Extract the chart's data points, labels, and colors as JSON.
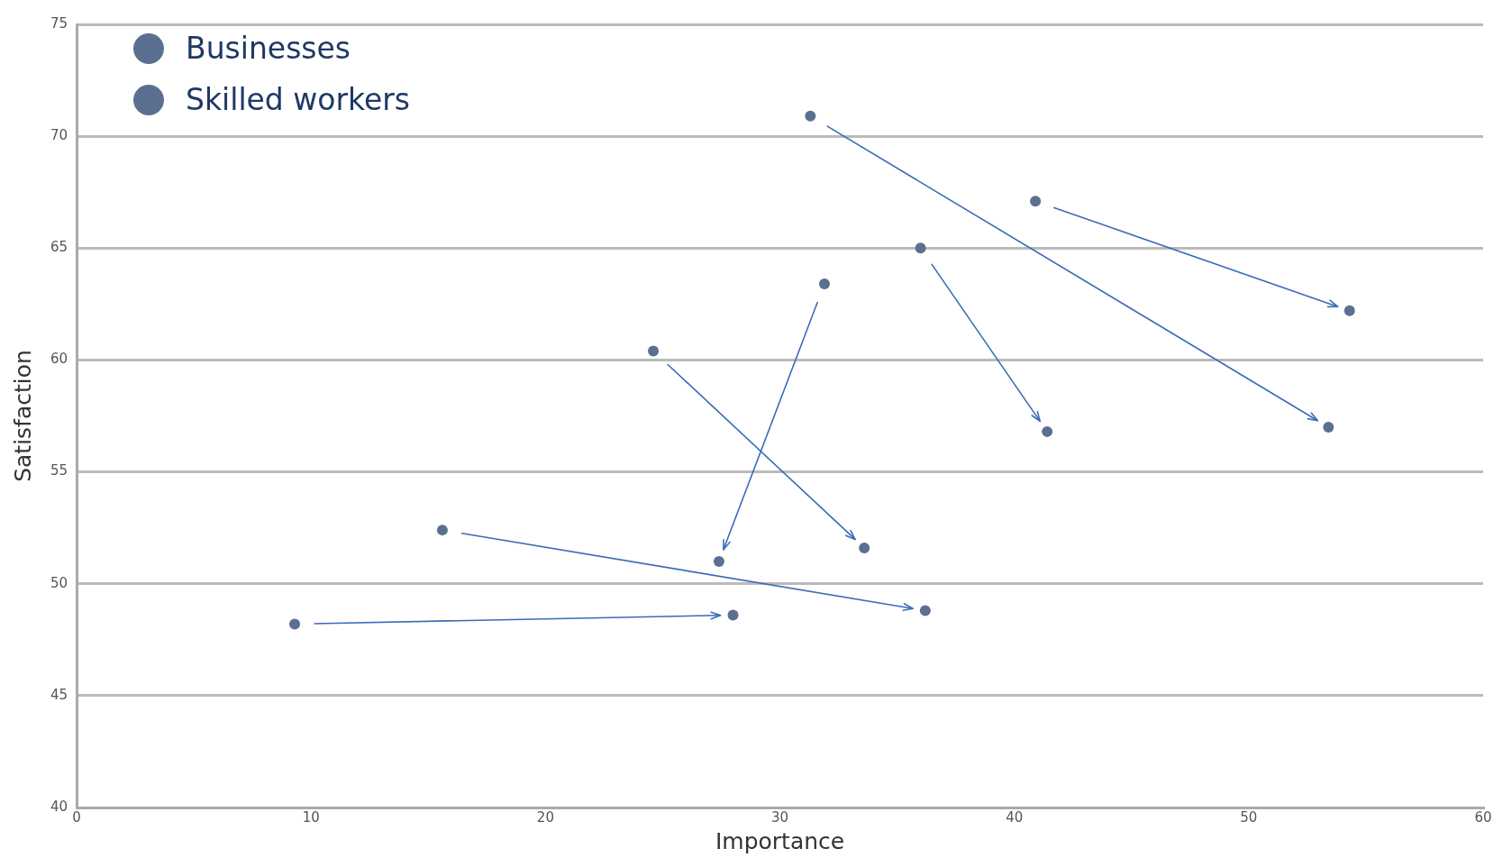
{
  "chart_data": {
    "type": "scatter",
    "xlabel": "Importance",
    "ylabel": "Satisfaction",
    "xlim": [
      0,
      60
    ],
    "xticks": [
      0,
      10,
      20,
      30,
      40,
      50,
      60
    ],
    "ylim": [
      40,
      75
    ],
    "yticks": [
      40,
      45,
      50,
      55,
      60,
      65,
      70,
      75
    ],
    "grid": "y",
    "legend": "top left",
    "marker": "circle",
    "series": [
      {
        "name": "Businesses",
        "color": "#5b6f91",
        "x": [
          9.3,
          15.6,
          24.6,
          31.9,
          36.0,
          31.3,
          40.9
        ],
        "values": [
          48.2,
          52.4,
          60.4,
          63.4,
          65.0,
          70.9,
          67.1
        ]
      },
      {
        "name": "Skilled workers",
        "color": "#5b6f91",
        "x": [
          28.0,
          36.2,
          33.6,
          27.4,
          41.4,
          53.4,
          54.3
        ],
        "values": [
          48.6,
          48.8,
          51.6,
          51.0,
          56.8,
          57.0,
          62.2
        ]
      }
    ]
  }
}
